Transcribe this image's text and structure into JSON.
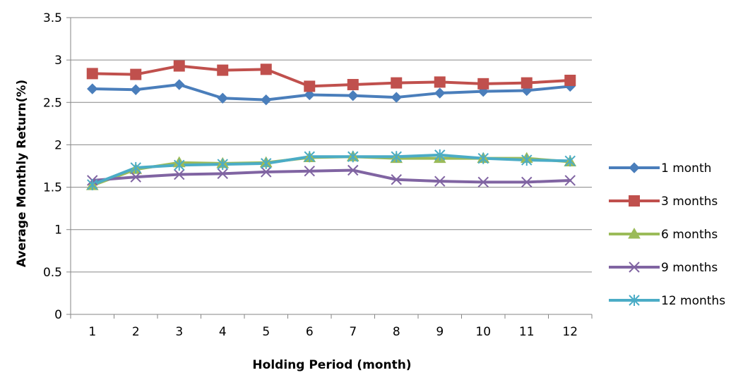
{
  "chart_data": {
    "type": "line",
    "title": "",
    "xlabel": "Holding Period (month)",
    "ylabel": "Average Monthly Return(%)",
    "ylim": [
      0,
      3.5
    ],
    "yticks": [
      0,
      0.5,
      1,
      1.5,
      2,
      2.5,
      3,
      3.5
    ],
    "ytick_labels": [
      "0",
      "0.5",
      "1",
      "1.5",
      "2",
      "2.5",
      "3",
      "3.5"
    ],
    "categories": [
      "1",
      "2",
      "3",
      "4",
      "5",
      "6",
      "7",
      "8",
      "9",
      "10",
      "11",
      "12"
    ],
    "grid": "horizontal",
    "legend_position": "right",
    "series": [
      {
        "name": "1 month",
        "color": "#4a7ebb",
        "marker": "diamond",
        "values": [
          2.66,
          2.65,
          2.71,
          2.55,
          2.53,
          2.59,
          2.58,
          2.56,
          2.61,
          2.63,
          2.64,
          2.69
        ]
      },
      {
        "name": "3 months",
        "color": "#c0504d",
        "marker": "square",
        "values": [
          2.84,
          2.83,
          2.93,
          2.88,
          2.89,
          2.69,
          2.71,
          2.73,
          2.74,
          2.72,
          2.73,
          2.76
        ]
      },
      {
        "name": "6 months",
        "color": "#9bbb59",
        "marker": "triangle",
        "values": [
          1.52,
          1.71,
          1.79,
          1.78,
          1.79,
          1.85,
          1.86,
          1.84,
          1.84,
          1.84,
          1.84,
          1.8
        ]
      },
      {
        "name": "9 months",
        "color": "#8064a2",
        "marker": "x",
        "values": [
          1.58,
          1.62,
          1.65,
          1.66,
          1.68,
          1.69,
          1.7,
          1.59,
          1.57,
          1.56,
          1.56,
          1.58
        ]
      },
      {
        "name": "12 months",
        "color": "#4bacc6",
        "marker": "star",
        "values": [
          1.53,
          1.73,
          1.76,
          1.77,
          1.78,
          1.86,
          1.86,
          1.86,
          1.88,
          1.84,
          1.82,
          1.81
        ]
      }
    ]
  }
}
